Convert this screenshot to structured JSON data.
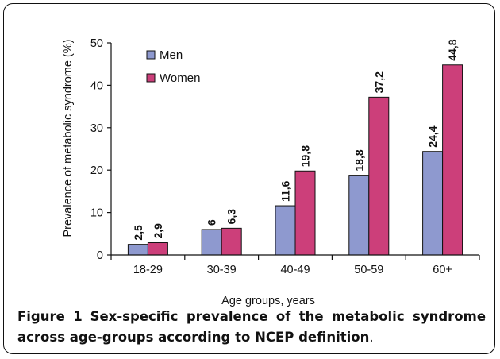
{
  "chart_data": {
    "type": "bar",
    "title": "",
    "xlabel": "Age groups, years",
    "ylabel": "Prevalence of metabolic syndrome (%)",
    "categories": [
      "18-29",
      "30-39",
      "40-49",
      "50-59",
      "60+"
    ],
    "series": [
      {
        "name": "Men",
        "values": [
          2.5,
          6,
          11.6,
          18.8,
          24.4
        ],
        "labels": [
          "2,5",
          "6",
          "11,6",
          "18,8",
          "24,4"
        ],
        "color": "#8e99cf"
      },
      {
        "name": "Women",
        "values": [
          2.9,
          6.3,
          19.8,
          37.2,
          44.8
        ],
        "labels": [
          "2,9",
          "6,3",
          "19,8",
          "37,2",
          "44,8"
        ],
        "color": "#cc3f7a"
      }
    ],
    "ylim": [
      0,
      50
    ],
    "yticks": [
      0,
      10,
      20,
      30,
      40,
      50
    ],
    "grid": false,
    "legend": "top-left"
  },
  "caption": {
    "label": "Figure 1",
    "text": "Sex-specific prevalence of the metabolic syndrome across age-groups according to NCEP definition",
    "end": "."
  }
}
